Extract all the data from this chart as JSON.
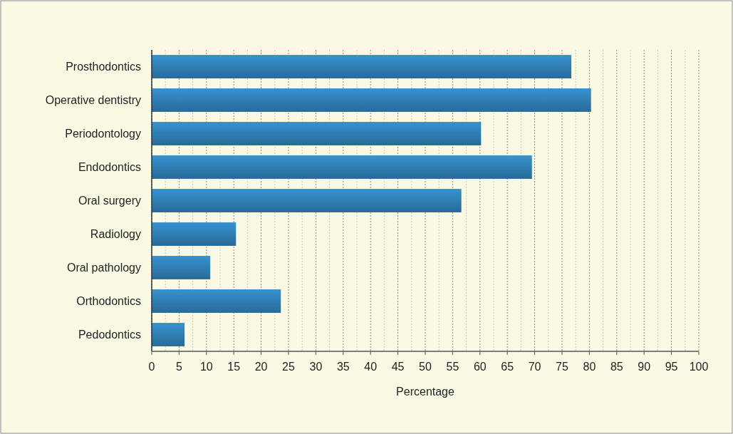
{
  "chart_data": {
    "type": "bar",
    "orientation": "horizontal",
    "xlabel": "Percentage",
    "categories": [
      "Prosthodontics",
      "Operative dentistry",
      "Periodontology",
      "Endodontics",
      "Oral surgery",
      "Radiology",
      "Oral pathology",
      "Orthodontics",
      "Pedodontics"
    ],
    "values": [
      76.7,
      80.3,
      60.2,
      69.5,
      56.6,
      15.4,
      10.7,
      23.6,
      6.0
    ],
    "color": "#2e7aae",
    "xlim": [
      0,
      100
    ],
    "xticks": [
      0,
      {
        "value": 2.5,
        "label": null
      },
      5,
      {
        "value": 7.5,
        "label": null
      },
      10,
      {
        "value": 12.5,
        "label": null
      },
      15,
      {
        "value": 17.5,
        "label": null
      },
      20,
      {
        "value": 22.5,
        "label": null
      },
      25,
      {
        "value": 27.5,
        "label": null
      },
      30,
      {
        "value": 32.5,
        "label": null
      },
      35,
      {
        "value": 37.5,
        "label": null
      },
      40,
      {
        "value": 42.5,
        "label": null
      },
      45,
      {
        "value": 47.5,
        "label": null
      },
      50,
      {
        "value": 52.5,
        "label": null
      },
      55,
      {
        "value": 57.5,
        "label": null
      },
      60,
      {
        "value": 62.5,
        "label": null
      },
      65,
      {
        "value": 67.5,
        "label": null
      },
      70,
      {
        "value": 72.5,
        "label": null
      },
      75,
      {
        "value": 77.5,
        "label": null
      },
      80,
      {
        "value": 82.5,
        "label": null
      },
      85,
      {
        "value": 87.5,
        "label": null
      },
      90,
      {
        "value": 92.5,
        "label": null
      },
      95,
      {
        "value": 97.5,
        "label": null
      },
      100
    ],
    "grid": "x"
  }
}
